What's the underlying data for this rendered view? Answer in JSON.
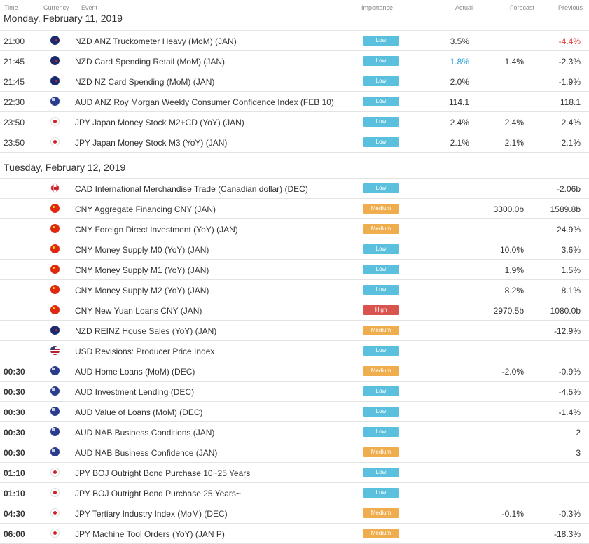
{
  "columns": {
    "time": "Time",
    "currency": "Currency",
    "event": "Event",
    "importance": "Importance",
    "actual": "Actual",
    "forecast": "Forecast",
    "previous": "Previous"
  },
  "days": [
    {
      "label": "Monday, February 11, 2019",
      "rows": [
        {
          "time": "21:00",
          "bold": false,
          "flag": "nz",
          "event": "NZD ANZ Truckometer Heavy (MoM) (JAN)",
          "importance": "Low",
          "level": "low",
          "actual": "3.5%",
          "forecast": "",
          "previous": "-4.4%",
          "actual_color": "",
          "previous_color": "red"
        },
        {
          "time": "21:45",
          "bold": false,
          "flag": "nz",
          "event": "NZD Card Spending Retail (MoM) (JAN)",
          "importance": "Low",
          "level": "low",
          "actual": "1.8%",
          "forecast": "1.4%",
          "previous": "-2.3%",
          "actual_color": "blue",
          "previous_color": ""
        },
        {
          "time": "21:45",
          "bold": false,
          "flag": "nz",
          "event": "NZD NZ Card Spending (MoM) (JAN)",
          "importance": "Low",
          "level": "low",
          "actual": "2.0%",
          "forecast": "",
          "previous": "-1.9%",
          "actual_color": "",
          "previous_color": ""
        },
        {
          "time": "22:30",
          "bold": false,
          "flag": "au",
          "event": "AUD ANZ Roy Morgan Weekly Consumer Confidence Index (FEB 10)",
          "importance": "Low",
          "level": "low",
          "actual": "114.1",
          "forecast": "",
          "previous": "118.1",
          "actual_color": "",
          "previous_color": ""
        },
        {
          "time": "23:50",
          "bold": false,
          "flag": "jp",
          "event": "JPY Japan Money Stock M2+CD (YoY) (JAN)",
          "importance": "Low",
          "level": "low",
          "actual": "2.4%",
          "forecast": "2.4%",
          "previous": "2.4%",
          "actual_color": "",
          "previous_color": ""
        },
        {
          "time": "23:50",
          "bold": false,
          "flag": "jp",
          "event": "JPY Japan Money Stock M3 (YoY) (JAN)",
          "importance": "Low",
          "level": "low",
          "actual": "2.1%",
          "forecast": "2.1%",
          "previous": "2.1%",
          "actual_color": "",
          "previous_color": ""
        }
      ]
    },
    {
      "label": "Tuesday, February 12, 2019",
      "rows": [
        {
          "time": "",
          "bold": false,
          "flag": "ca",
          "event": "CAD International Merchandise Trade (Canadian dollar) (DEC)",
          "importance": "Low",
          "level": "low",
          "actual": "",
          "forecast": "",
          "previous": "-2.06b",
          "actual_color": "",
          "previous_color": ""
        },
        {
          "time": "",
          "bold": false,
          "flag": "cn",
          "event": "CNY Aggregate Financing CNY (JAN)",
          "importance": "Medium",
          "level": "medium",
          "actual": "",
          "forecast": "3300.0b",
          "previous": "1589.8b",
          "actual_color": "",
          "previous_color": ""
        },
        {
          "time": "",
          "bold": false,
          "flag": "cn",
          "event": "CNY Foreign Direct Investment (YoY) (JAN)",
          "importance": "Medium",
          "level": "medium",
          "actual": "",
          "forecast": "",
          "previous": "24.9%",
          "actual_color": "",
          "previous_color": ""
        },
        {
          "time": "",
          "bold": false,
          "flag": "cn",
          "event": "CNY Money Supply M0 (YoY) (JAN)",
          "importance": "Low",
          "level": "low",
          "actual": "",
          "forecast": "10.0%",
          "previous": "3.6%",
          "actual_color": "",
          "previous_color": ""
        },
        {
          "time": "",
          "bold": false,
          "flag": "cn",
          "event": "CNY Money Supply M1 (YoY) (JAN)",
          "importance": "Low",
          "level": "low",
          "actual": "",
          "forecast": "1.9%",
          "previous": "1.5%",
          "actual_color": "",
          "previous_color": ""
        },
        {
          "time": "",
          "bold": false,
          "flag": "cn",
          "event": "CNY Money Supply M2 (YoY) (JAN)",
          "importance": "Low",
          "level": "low",
          "actual": "",
          "forecast": "8.2%",
          "previous": "8.1%",
          "actual_color": "",
          "previous_color": ""
        },
        {
          "time": "",
          "bold": false,
          "flag": "cn",
          "event": "CNY New Yuan Loans CNY (JAN)",
          "importance": "High",
          "level": "high",
          "actual": "",
          "forecast": "2970.5b",
          "previous": "1080.0b",
          "actual_color": "",
          "previous_color": ""
        },
        {
          "time": "",
          "bold": false,
          "flag": "nz",
          "event": "NZD REINZ House Sales (YoY) (JAN)",
          "importance": "Medium",
          "level": "medium",
          "actual": "",
          "forecast": "",
          "previous": "-12.9%",
          "actual_color": "",
          "previous_color": ""
        },
        {
          "time": "",
          "bold": false,
          "flag": "us",
          "event": "USD Revisions: Producer Price Index",
          "importance": "Low",
          "level": "low",
          "actual": "",
          "forecast": "",
          "previous": "",
          "actual_color": "",
          "previous_color": ""
        },
        {
          "time": "00:30",
          "bold": true,
          "flag": "au",
          "event": "AUD Home Loans (MoM) (DEC)",
          "importance": "Medium",
          "level": "medium",
          "actual": "",
          "forecast": "-2.0%",
          "previous": "-0.9%",
          "actual_color": "",
          "previous_color": ""
        },
        {
          "time": "00:30",
          "bold": true,
          "flag": "au",
          "event": "AUD Investment Lending (DEC)",
          "importance": "Low",
          "level": "low",
          "actual": "",
          "forecast": "",
          "previous": "-4.5%",
          "actual_color": "",
          "previous_color": ""
        },
        {
          "time": "00:30",
          "bold": true,
          "flag": "au",
          "event": "AUD Value of Loans (MoM) (DEC)",
          "importance": "Low",
          "level": "low",
          "actual": "",
          "forecast": "",
          "previous": "-1.4%",
          "actual_color": "",
          "previous_color": ""
        },
        {
          "time": "00:30",
          "bold": true,
          "flag": "au",
          "event": "AUD NAB Business Conditions (JAN)",
          "importance": "Low",
          "level": "low",
          "actual": "",
          "forecast": "",
          "previous": "2",
          "actual_color": "",
          "previous_color": ""
        },
        {
          "time": "00:30",
          "bold": true,
          "flag": "au",
          "event": "AUD NAB Business Confidence (JAN)",
          "importance": "Medium",
          "level": "medium",
          "actual": "",
          "forecast": "",
          "previous": "3",
          "actual_color": "",
          "previous_color": ""
        },
        {
          "time": "01:10",
          "bold": true,
          "flag": "jp",
          "event": "JPY BOJ Outright Bond Purchase 10~25 Years",
          "importance": "Low",
          "level": "low",
          "actual": "",
          "forecast": "",
          "previous": "",
          "actual_color": "",
          "previous_color": ""
        },
        {
          "time": "01:10",
          "bold": true,
          "flag": "jp",
          "event": "JPY BOJ Outright Bond Purchase 25 Years~",
          "importance": "Low",
          "level": "low",
          "actual": "",
          "forecast": "",
          "previous": "",
          "actual_color": "",
          "previous_color": ""
        },
        {
          "time": "04:30",
          "bold": true,
          "flag": "jp",
          "event": "JPY Tertiary Industry Index (MoM) (DEC)",
          "importance": "Medium",
          "level": "medium",
          "actual": "",
          "forecast": "-0.1%",
          "previous": "-0.3%",
          "actual_color": "",
          "previous_color": ""
        },
        {
          "time": "06:00",
          "bold": true,
          "flag": "jp",
          "event": "JPY Machine Tool Orders (YoY) (JAN P)",
          "importance": "Medium",
          "level": "medium",
          "actual": "",
          "forecast": "",
          "previous": "-18.3%",
          "actual_color": "",
          "previous_color": ""
        }
      ]
    }
  ]
}
